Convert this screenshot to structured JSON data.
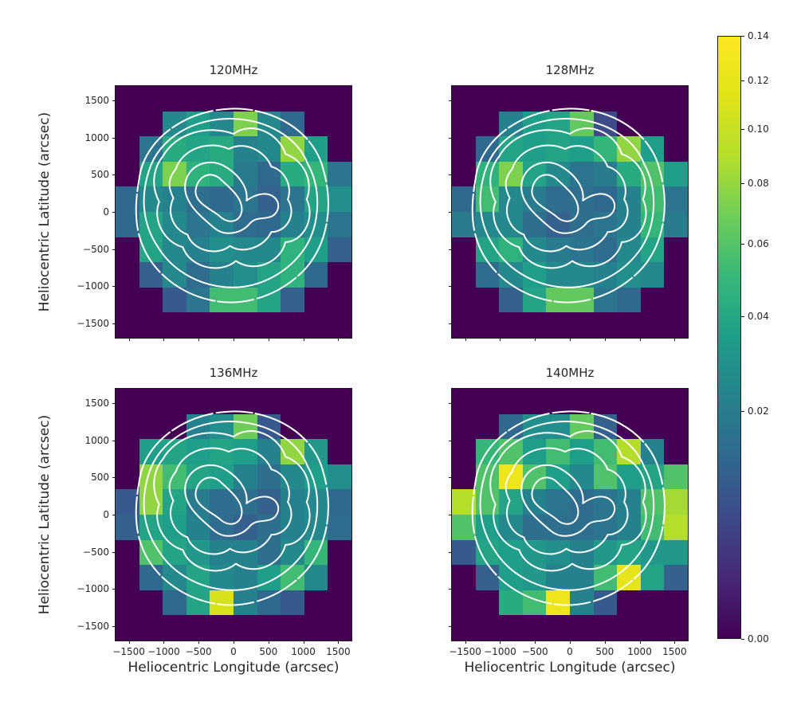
{
  "figure": {
    "background": "#ffffff",
    "plot_background": "#440154"
  },
  "axes": {
    "xlabel": "Heliocentric Longitude (arcsec)",
    "ylabel": "Heliocentric Latitude (arcsec)",
    "xticks": [
      -1500,
      -1000,
      -500,
      0,
      500,
      1000,
      1500
    ],
    "yticks": [
      1500,
      1000,
      500,
      0,
      -500,
      -1000,
      -1500
    ],
    "xtick_labels": [
      "−1500",
      "−1000",
      "−500",
      "0",
      "500",
      "1000",
      "1500"
    ],
    "ytick_labels": [
      "1500",
      "1000",
      "500",
      "0",
      "−500",
      "−1000",
      "−1500"
    ],
    "extent": [
      -1690,
      1690
    ]
  },
  "viridis_stops": [
    "#440154",
    "#482878",
    "#3e4a89",
    "#31688e",
    "#26828e",
    "#1f9e89",
    "#35b779",
    "#6dcd59",
    "#b4de2c",
    "#dfe318",
    "#fde725"
  ],
  "contour": {
    "color": "#ffffff",
    "linewidth": 2,
    "paths": [
      "M 10 37 C 12 21 30 9.5 49 9 C 67 8.5 84 18 88 33 C 92.5 47 90 62 81 72 C 71 82.5 56 87.5 43 85.5 C 29 83.5 16.5 75 11.5 63.5 C 7.5 54.5 8.5 45 10 37 Z",
      "M 14 34 C 18.5 20 34 12.5 50 13 C 64 13.5 77 20 81.5 31 C 87.5 41 86.5 55 80.5 64 C 73.5 74 61.5 80 49.5 80 C 37 80 24.5 74 18 64 C 11.5 55 10.5 44.5 14 34 Z",
      "M 20 28 C 26 18 40 15.5 50 19 C 58 13.5 69.5 19 72 27 C 80 29.5 84 38 81 45 C 85 53 79 62 72 62 C 70 70 59 74.5 51 69.5 C 44 75 31.5 72 28.5 64 C 20.5 62 15.5 53 18.5 46 C 14.5 39 16.5 32 20 28 Z",
      "M 25.5 33 C 28.5 24.5 40 21.5 48 25 C 55 21.5 63.5 26 66 32 C 72 33.5 75 40 73 45 C 77 51 72.5 58 66 58 C 63 64 54 67 48.5 63.5 C 42.5 68 32.5 65 30.5 59 C 24.5 57 21.5 50.5 24.5 44.5 C 21.5 39 23 36 25.5 33 Z",
      "M 29.5 39 C 30.5 31.5 39 28.5 45.5 31.5 C 51.5 34.5 56.5 40 55.5 45.5 C 58.5 43.5 63.5 41.5 67 44 C 70.5 46.5 69 51 65.5 52 C 62 53 59.5 52 57 54.5 C 53.5 58.5 46.5 60 42 56.5 C 37 52.5 28.5 46.5 29.5 39 Z",
      "M 34 41 C 35 35.5 40.5 33.5 44.5 37 C 48.5 40.5 54 44.5 53.5 49.5 C 53 54 48 55 44.5 52 C 41 49 33 46.5 34 41 Z"
    ],
    "outer_dash": "30 1.5 22 2 18 1.5"
  },
  "colorbar": {
    "vmin": 0.0,
    "vmax": 0.14,
    "ticks": [
      0.0,
      0.02,
      0.04,
      0.06,
      0.08,
      0.1,
      0.12,
      0.14
    ],
    "tick_labels": [
      "0.00",
      "0.02",
      "0.04",
      "0.06",
      "0.08",
      "0.10",
      "0.12",
      "0.14"
    ],
    "norm": "sqrt (PowerNorm gamma=0.5)"
  },
  "chart_data": {
    "type": "heatmap",
    "colormap": "viridis",
    "norm": "sqrt",
    "vmin": 0.0,
    "vmax": 0.14,
    "grid": {
      "ncols": 10,
      "nrows": 10,
      "cell_arcsec": 338,
      "extent_arcsec": [
        -1690,
        1690
      ]
    },
    "overlay": "white EUV intensity contours, 6 nested levels, outermost partly dashed",
    "panels": [
      {
        "title": "120MHz",
        "values": [
          [
            0,
            0,
            0,
            0,
            0,
            0,
            0,
            0,
            0,
            0
          ],
          [
            0,
            0,
            0.025,
            0.035,
            0.025,
            0.073,
            0.025,
            0.013,
            0,
            0
          ],
          [
            0,
            0.017,
            0.042,
            0.038,
            0.042,
            0.022,
            0.025,
            0.079,
            0.035,
            0
          ],
          [
            0,
            0.038,
            0.073,
            0.047,
            0.042,
            0.02,
            0.013,
            0.042,
            0.05,
            0.017
          ],
          [
            0.013,
            0.025,
            0.022,
            0.015,
            0.013,
            0.017,
            0.011,
            0.017,
            0.038,
            0.028
          ],
          [
            0.013,
            0.038,
            0.025,
            0.017,
            0.022,
            0.014,
            0.013,
            0.022,
            0.028,
            0.017
          ],
          [
            0,
            0.038,
            0.025,
            0.022,
            0.028,
            0.025,
            0.025,
            0.047,
            0.035,
            0.011
          ],
          [
            0,
            0.011,
            0.025,
            0.014,
            0.022,
            0.028,
            0.038,
            0.047,
            0.013,
            0
          ],
          [
            0,
            0,
            0.009,
            0.017,
            0.054,
            0.054,
            0.038,
            0.011,
            0,
            0
          ],
          [
            0,
            0,
            0,
            0,
            0,
            0,
            0,
            0,
            0,
            0
          ]
        ]
      },
      {
        "title": "128MHz",
        "values": [
          [
            0,
            0,
            0,
            0,
            0,
            0,
            0,
            0,
            0,
            0
          ],
          [
            0,
            0,
            0.022,
            0.035,
            0.038,
            0.065,
            0.006,
            0,
            0,
            0
          ],
          [
            0,
            0.013,
            0.038,
            0.035,
            0.038,
            0.035,
            0.05,
            0.079,
            0.035,
            0
          ],
          [
            0,
            0.047,
            0.073,
            0.038,
            0.025,
            0.017,
            0.02,
            0.042,
            0.059,
            0.035
          ],
          [
            0.013,
            0.054,
            0.025,
            0.02,
            0.014,
            0.015,
            0.013,
            0.022,
            0.054,
            0.017
          ],
          [
            0.02,
            0.025,
            0.025,
            0.015,
            0.011,
            0.015,
            0.017,
            0.022,
            0.05,
            0.02
          ],
          [
            0,
            0.038,
            0.047,
            0.025,
            0.02,
            0.017,
            0.014,
            0.025,
            0.038,
            0
          ],
          [
            0,
            0.014,
            0.025,
            0.035,
            0.025,
            0.025,
            0.022,
            0.028,
            0.025,
            0
          ],
          [
            0,
            0,
            0.011,
            0.038,
            0.065,
            0.065,
            0.017,
            0.013,
            0,
            0
          ],
          [
            0,
            0,
            0,
            0,
            0,
            0,
            0,
            0,
            0,
            0
          ]
        ]
      },
      {
        "title": "136MHz",
        "values": [
          [
            0,
            0,
            0,
            0,
            0,
            0,
            0,
            0,
            0,
            0
          ],
          [
            0,
            0,
            0,
            0.022,
            0.028,
            0.069,
            0.009,
            0,
            0,
            0
          ],
          [
            0,
            0.035,
            0.038,
            0.035,
            0.038,
            0.035,
            0.022,
            0.079,
            0.032,
            0
          ],
          [
            0,
            0.079,
            0.054,
            0.038,
            0.035,
            0.022,
            0.015,
            0.025,
            0.035,
            0.028
          ],
          [
            0.009,
            0.079,
            0.038,
            0.02,
            0.014,
            0.015,
            0.011,
            0.022,
            0.025,
            0.013
          ],
          [
            0.011,
            0.038,
            0.035,
            0.022,
            0.014,
            0.011,
            0.015,
            0.022,
            0.025,
            0.014
          ],
          [
            0,
            0.059,
            0.038,
            0.032,
            0.022,
            0.022,
            0.015,
            0.025,
            0.05,
            0
          ],
          [
            0,
            0.013,
            0.025,
            0.038,
            0.025,
            0.022,
            0.035,
            0.054,
            0.025,
            0
          ],
          [
            0,
            0,
            0.013,
            0.038,
            0.108,
            0.022,
            0.013,
            0.009,
            0,
            0
          ],
          [
            0,
            0,
            0,
            0,
            0,
            0,
            0,
            0,
            0,
            0
          ]
        ]
      },
      {
        "title": "140MHz",
        "values": [
          [
            0,
            0,
            0,
            0,
            0,
            0,
            0,
            0,
            0,
            0
          ],
          [
            0,
            0,
            0.013,
            0.028,
            0.028,
            0.065,
            0.011,
            0,
            0,
            0
          ],
          [
            0,
            0.05,
            0.059,
            0.035,
            0.054,
            0.035,
            0.054,
            0.09,
            0.022,
            0
          ],
          [
            0,
            0.059,
            0.126,
            0.059,
            0.035,
            0.025,
            0.059,
            0.035,
            0.038,
            0.059
          ],
          [
            0.09,
            0.059,
            0.038,
            0.022,
            0.017,
            0.014,
            0.017,
            0.022,
            0.059,
            0.085
          ],
          [
            0.059,
            0.035,
            0.025,
            0.015,
            0.015,
            0.015,
            0.017,
            0.022,
            0.054,
            0.09
          ],
          [
            0.009,
            0.038,
            0.035,
            0.032,
            0.028,
            0.022,
            0.032,
            0.038,
            0.032,
            0.032
          ],
          [
            0,
            0.011,
            0.035,
            0.032,
            0.022,
            0.022,
            0.054,
            0.119,
            0.038,
            0.011
          ],
          [
            0,
            0,
            0.042,
            0.054,
            0.126,
            0.022,
            0.009,
            0,
            0,
            0
          ],
          [
            0,
            0,
            0,
            0,
            0,
            0,
            0,
            0,
            0,
            0
          ]
        ]
      }
    ]
  }
}
